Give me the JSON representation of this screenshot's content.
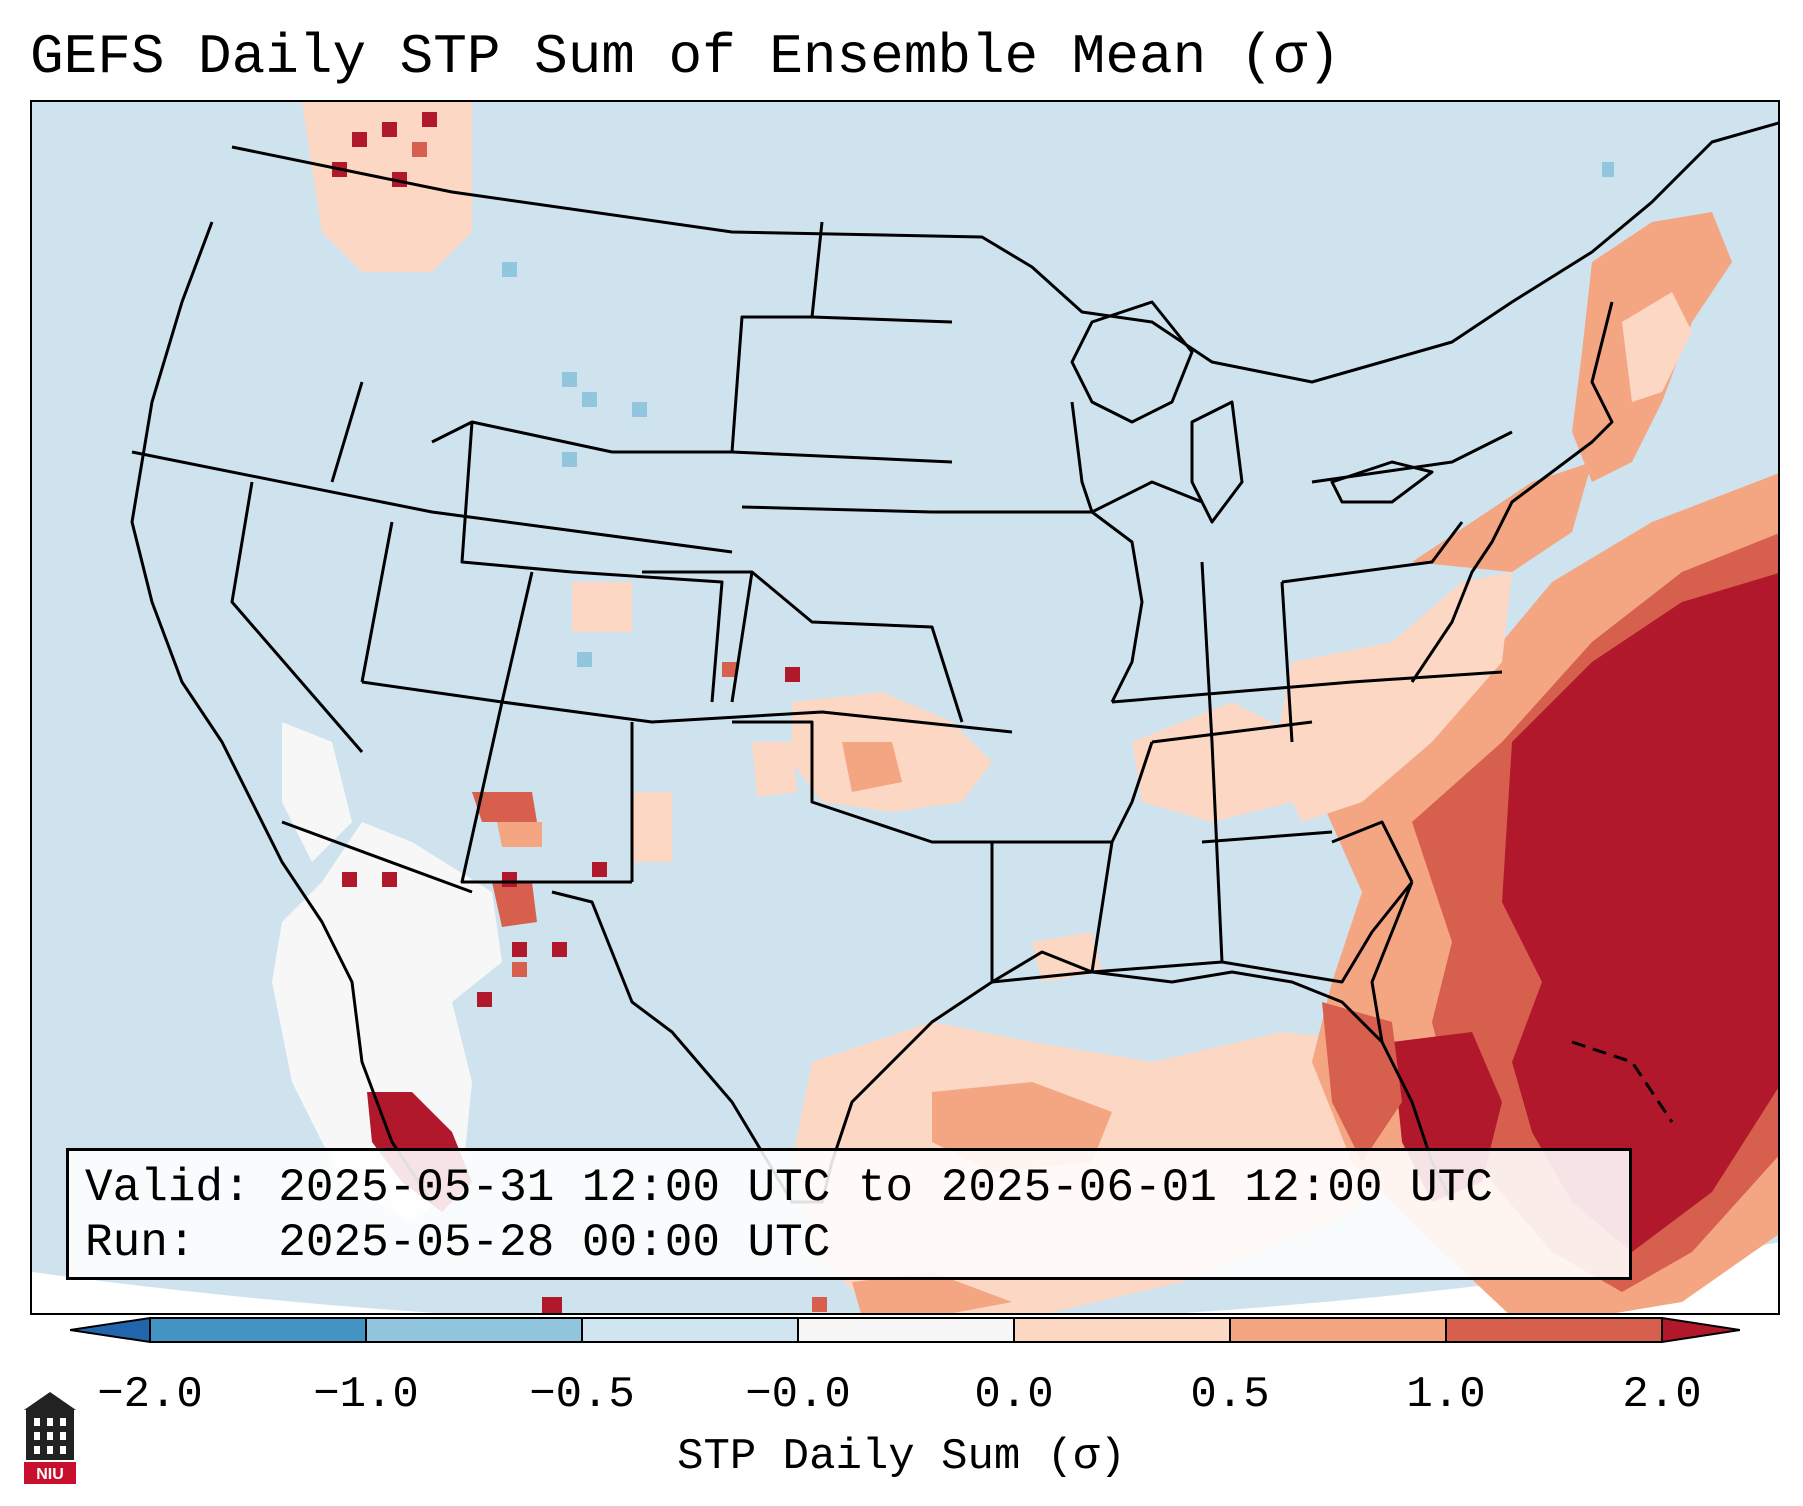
{
  "title": "GEFS Daily STP Sum of Ensemble Mean (σ)",
  "colors": {
    "ocean_light": "#cfe3ef",
    "neutral_white": "#f7f7f7",
    "pos_1": "#fbd7c4",
    "pos_2": "#f4a582",
    "pos_3": "#d6604d",
    "pos_4": "#b2182b",
    "neg_1": "#d1e5f0",
    "neg_2": "#92c5de",
    "neg_3": "#4393c3",
    "neg_4": "#2166ac"
  },
  "info_box": {
    "valid_label": "Valid:",
    "valid_value": "2025-05-31 12:00 UTC to 2025-06-01 12:00 UTC",
    "run_label": "Run:",
    "run_value": "2025-05-28 00:00 UTC"
  },
  "colorbar": {
    "label": "STP Daily Sum (σ)",
    "ticks": [
      "−2.0",
      "−1.0",
      "−0.5",
      "−0.0",
      "0.0",
      "0.5",
      "1.0",
      "2.0"
    ],
    "bin_edges": [
      -2.0,
      -1.0,
      -0.5,
      -0.0,
      0.0,
      0.5,
      1.0,
      2.0
    ],
    "extend": "both"
  },
  "logo": {
    "text": "NIU",
    "icon": "niu-tower-icon"
  }
}
